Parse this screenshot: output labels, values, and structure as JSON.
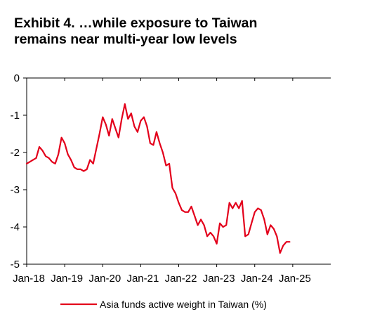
{
  "chart_data": {
    "type": "line",
    "title_lines": [
      "Exhibit 4. …while exposure to Taiwan",
      "remains near multi-year low levels"
    ],
    "xlabel": "",
    "ylabel": "",
    "ylim": [
      -5,
      0
    ],
    "yticks": [
      "0",
      "-1",
      "-2",
      "-3",
      "-4",
      "-5"
    ],
    "xticks": [
      "Jan-18",
      "Jan-19",
      "Jan-20",
      "Jan-21",
      "Jan-22",
      "Jan-23",
      "Jan-24",
      "Jan-25"
    ],
    "grid": false,
    "legend_position": "bottom",
    "line_color": "#e3001b",
    "series": [
      {
        "name": "Asia funds active weight in Taiwan (%)",
        "points": [
          [
            "2018-01",
            -2.3
          ],
          [
            "2018-02",
            -2.25
          ],
          [
            "2018-03",
            -2.2
          ],
          [
            "2018-04",
            -2.15
          ],
          [
            "2018-05",
            -1.85
          ],
          [
            "2018-06",
            -1.95
          ],
          [
            "2018-07",
            -2.1
          ],
          [
            "2018-08",
            -2.15
          ],
          [
            "2018-09",
            -2.25
          ],
          [
            "2018-10",
            -2.3
          ],
          [
            "2018-11",
            -2.05
          ],
          [
            "2018-12",
            -1.6
          ],
          [
            "2019-01",
            -1.75
          ],
          [
            "2019-02",
            -2.05
          ],
          [
            "2019-03",
            -2.2
          ],
          [
            "2019-04",
            -2.4
          ],
          [
            "2019-05",
            -2.45
          ],
          [
            "2019-06",
            -2.45
          ],
          [
            "2019-07",
            -2.5
          ],
          [
            "2019-08",
            -2.45
          ],
          [
            "2019-09",
            -2.2
          ],
          [
            "2019-10",
            -2.3
          ],
          [
            "2019-11",
            -1.9
          ],
          [
            "2019-12",
            -1.5
          ],
          [
            "2020-01",
            -1.05
          ],
          [
            "2020-02",
            -1.25
          ],
          [
            "2020-03",
            -1.55
          ],
          [
            "2020-04",
            -1.1
          ],
          [
            "2020-05",
            -1.35
          ],
          [
            "2020-06",
            -1.6
          ],
          [
            "2020-07",
            -1.1
          ],
          [
            "2020-08",
            -0.7
          ],
          [
            "2020-09",
            -1.1
          ],
          [
            "2020-10",
            -0.95
          ],
          [
            "2020-11",
            -1.3
          ],
          [
            "2020-12",
            -1.45
          ],
          [
            "2021-01",
            -1.15
          ],
          [
            "2021-02",
            -1.05
          ],
          [
            "2021-03",
            -1.3
          ],
          [
            "2021-04",
            -1.75
          ],
          [
            "2021-05",
            -1.8
          ],
          [
            "2021-06",
            -1.45
          ],
          [
            "2021-07",
            -1.75
          ],
          [
            "2021-08",
            -2.0
          ],
          [
            "2021-09",
            -2.35
          ],
          [
            "2021-10",
            -2.3
          ],
          [
            "2021-11",
            -2.95
          ],
          [
            "2021-12",
            -3.1
          ],
          [
            "2022-01",
            -3.35
          ],
          [
            "2022-02",
            -3.55
          ],
          [
            "2022-03",
            -3.6
          ],
          [
            "2022-04",
            -3.6
          ],
          [
            "2022-05",
            -3.45
          ],
          [
            "2022-06",
            -3.7
          ],
          [
            "2022-07",
            -3.95
          ],
          [
            "2022-08",
            -3.8
          ],
          [
            "2022-09",
            -3.95
          ],
          [
            "2022-10",
            -4.25
          ],
          [
            "2022-11",
            -4.15
          ],
          [
            "2022-12",
            -4.25
          ],
          [
            "2023-01",
            -4.45
          ],
          [
            "2023-02",
            -3.9
          ],
          [
            "2023-03",
            -4.0
          ],
          [
            "2023-04",
            -3.95
          ],
          [
            "2023-05",
            -3.35
          ],
          [
            "2023-06",
            -3.5
          ],
          [
            "2023-07",
            -3.35
          ],
          [
            "2023-08",
            -3.5
          ],
          [
            "2023-09",
            -3.3
          ],
          [
            "2023-10",
            -4.25
          ],
          [
            "2023-11",
            -4.2
          ],
          [
            "2023-12",
            -3.9
          ],
          [
            "2024-01",
            -3.6
          ],
          [
            "2024-02",
            -3.5
          ],
          [
            "2024-03",
            -3.55
          ],
          [
            "2024-04",
            -3.8
          ],
          [
            "2024-05",
            -4.2
          ],
          [
            "2024-06",
            -3.95
          ],
          [
            "2024-07",
            -4.05
          ],
          [
            "2024-08",
            -4.25
          ],
          [
            "2024-09",
            -4.7
          ],
          [
            "2024-10",
            -4.5
          ],
          [
            "2024-11",
            -4.4
          ],
          [
            "2024-12",
            -4.4
          ]
        ]
      }
    ]
  }
}
